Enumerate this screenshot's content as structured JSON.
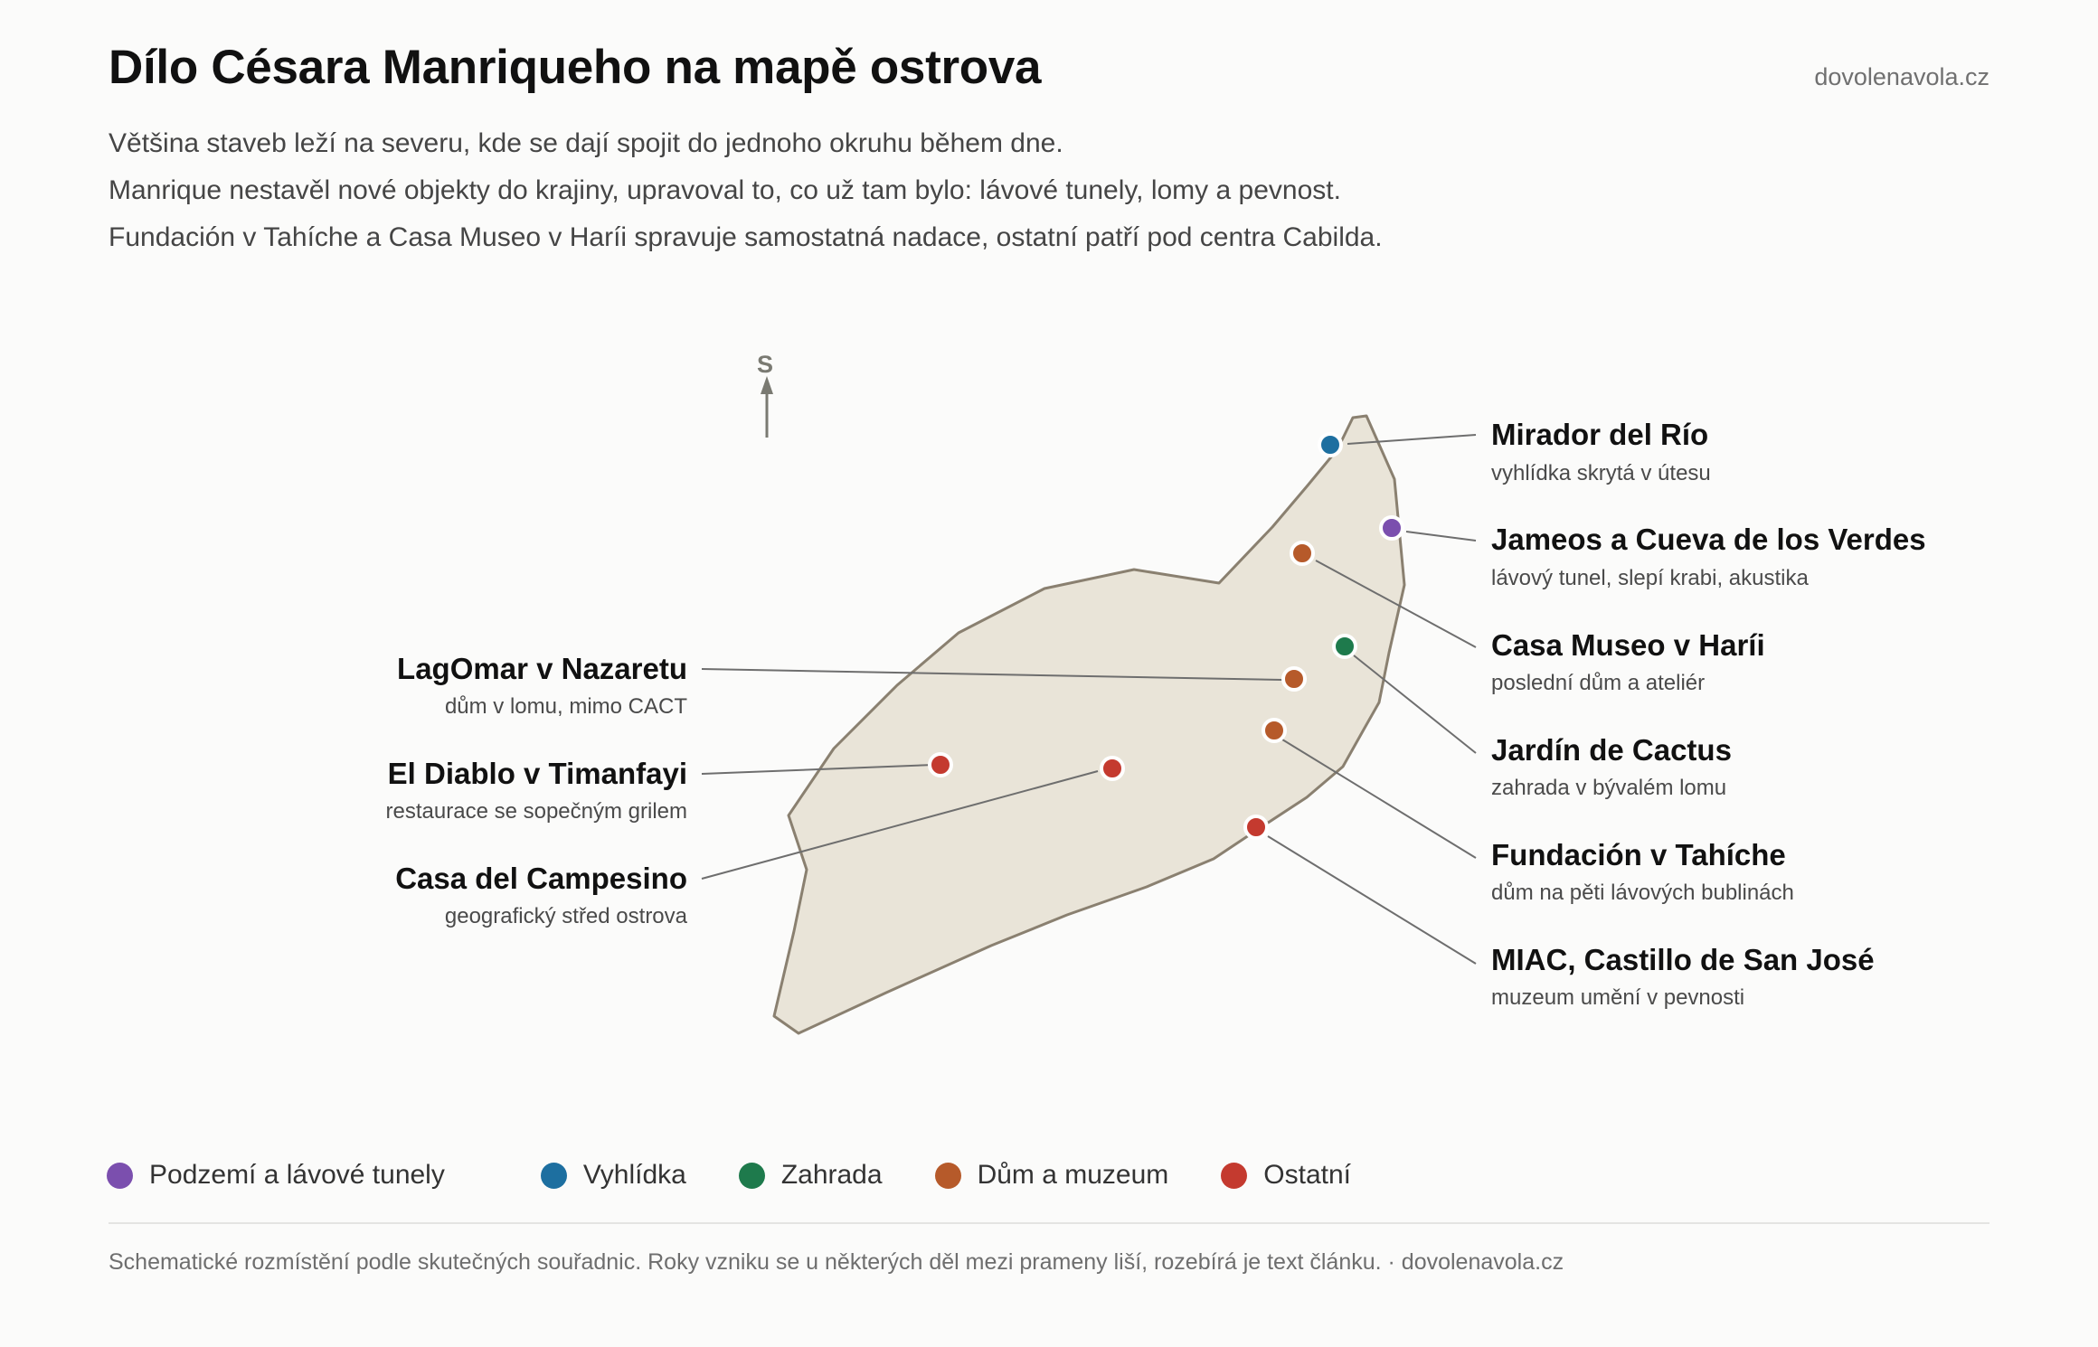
{
  "header": {
    "title": "Dílo Césara Manriqueho na mapě ostrova",
    "brand": "dovolenavola.cz"
  },
  "intro": [
    "Většina staveb leží na severu, kde se dají spojit do jednoho okruhu během dne.",
    "Manrique nestavěl nové objekty do krajiny, upravoval to, co už tam bylo: lávové tunely, lomy a pevnost.",
    "Fundación v Tahíche a Casa Museo v Haríi spravuje samostatná nadace, ostatní patří pod centra Cabilda."
  ],
  "map": {
    "north_label": "S",
    "island_fill": "#e9e4d8",
    "island_stroke": "#8a8070"
  },
  "categories": [
    {
      "key": "underground",
      "label": "Podzemí a lávové tunely",
      "color": "#7b4fae"
    },
    {
      "key": "viewpoint",
      "label": "Vyhlídka",
      "color": "#1d6fa0"
    },
    {
      "key": "garden",
      "label": "Zahrada",
      "color": "#1e7a4c"
    },
    {
      "key": "house",
      "label": "Dům a muzeum",
      "color": "#b65a2a"
    },
    {
      "key": "other",
      "label": "Ostatní",
      "color": "#c43a2f"
    }
  ],
  "sites": [
    {
      "id": "mirador",
      "name": "Mirador del Río",
      "desc": "vyhlídka skrytá v útesu",
      "category": "viewpoint",
      "side": "right"
    },
    {
      "id": "jameos",
      "name": "Jameos a Cueva de los Verdes",
      "desc": "lávový tunel, slepí krabi, akustika",
      "category": "underground",
      "side": "right"
    },
    {
      "id": "casa-museo",
      "name": "Casa Museo v Haríi",
      "desc": "poslední dům a ateliér",
      "category": "house",
      "side": "right"
    },
    {
      "id": "cactus",
      "name": "Jardín de Cactus",
      "desc": "zahrada v bývalém lomu",
      "category": "garden",
      "side": "right"
    },
    {
      "id": "fundacion",
      "name": "Fundación v Tahíche",
      "desc": "dům na pěti lávových bublinách",
      "category": "house",
      "side": "right"
    },
    {
      "id": "miac",
      "name": "MIAC, Castillo de San José",
      "desc": "muzeum umění v pevnosti",
      "category": "other",
      "side": "right"
    },
    {
      "id": "lagomar",
      "name": "LagOmar v Nazaretu",
      "desc": "dům v lomu, mimo CACT",
      "category": "house",
      "side": "left"
    },
    {
      "id": "diablo",
      "name": "El Diablo v Timanfayi",
      "desc": "restaurace se sopečným grilem",
      "category": "other",
      "side": "left"
    },
    {
      "id": "campesino",
      "name": "Casa del Campesino",
      "desc": "geografický střed ostrova",
      "category": "other",
      "side": "left"
    }
  ],
  "footnote": "Schematické rozmístění podle skutečných souřadnic. Roky vzniku se u některých děl mezi prameny liší, rozebírá je text článku. · dovolenavola.cz"
}
